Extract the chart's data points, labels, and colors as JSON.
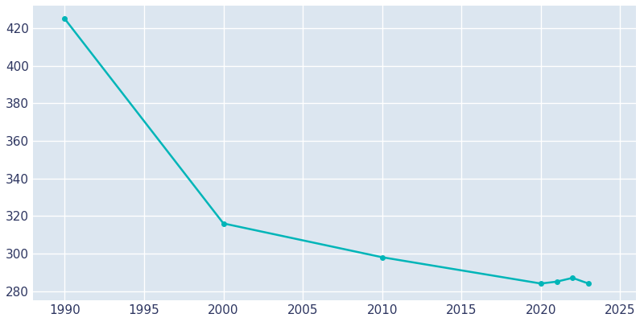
{
  "years": [
    1990,
    2000,
    2010,
    2020,
    2021,
    2022,
    2023
  ],
  "population": [
    425,
    316,
    298,
    284,
    285,
    287,
    284
  ],
  "line_color": "#00b5b8",
  "marker": "o",
  "marker_size": 4,
  "line_width": 1.8,
  "background_color": "#ffffff",
  "plot_background_color": "#dce6f0",
  "grid_color": "#ffffff",
  "tick_label_color": "#2d3560",
  "xlim": [
    1988,
    2026
  ],
  "ylim": [
    275,
    432
  ],
  "xticks": [
    1990,
    1995,
    2000,
    2005,
    2010,
    2015,
    2020,
    2025
  ],
  "yticks": [
    280,
    300,
    320,
    340,
    360,
    380,
    400,
    420
  ],
  "title_fontsize": 13,
  "tick_fontsize": 11
}
